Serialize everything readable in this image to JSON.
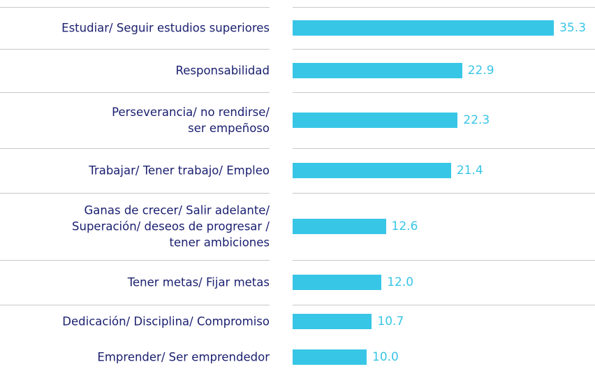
{
  "chart_data": {
    "type": "bar",
    "orientation": "horizontal",
    "categories": [
      "Estudiar/ Seguir estudios superiores",
      "Responsabilidad",
      "Perseverancia/ no rendirse/\nser empeñoso",
      "Trabajar/ Tener trabajo/ Empleo",
      "Ganas de crecer/ Salir adelante/\nSuperación/ deseos de progresar /\ntener ambiciones",
      "Tener metas/ Fijar metas",
      "Dedicación/ Disciplina/ Compromiso",
      "Emprender/ Ser emprendedor"
    ],
    "values": [
      35.3,
      22.9,
      22.3,
      21.4,
      12.6,
      12.0,
      10.7,
      10.0
    ],
    "value_labels": [
      "35.3",
      "22.9",
      "22.3",
      "21.4",
      "12.6",
      "12.0",
      "10.7",
      "10.0"
    ],
    "color": "#38c6e6"
  }
}
